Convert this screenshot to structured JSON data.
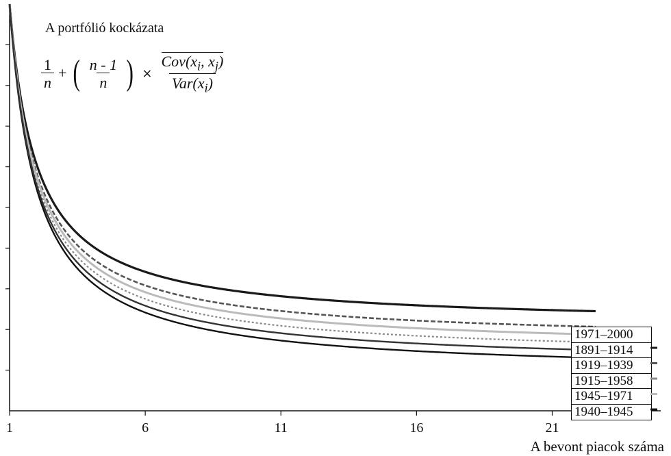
{
  "chart_data": {
    "type": "line",
    "title": "A portfólió kockázata",
    "formula": {
      "term1_num": "1",
      "term1_den": "n",
      "plus": "+",
      "term2_num": "n - 1",
      "term2_den": "n",
      "times": "×",
      "term3_num_bar": "Cov(x",
      "term3_num_sub_i": "i",
      "term3_num_mid": ", x",
      "term3_num_sub_j": "j",
      "term3_num_end": ")",
      "term3_den": "Var(x",
      "term3_den_sub_i": "i",
      "term3_den_end": ")"
    },
    "xlabel": "A bevont piacok száma",
    "ylabel": "",
    "x_ticks": [
      "1",
      "6",
      "11",
      "16",
      "21"
    ],
    "xlim": [
      1,
      25
    ],
    "ylim": [
      0,
      1
    ],
    "grid": false,
    "legend_position": "bottom-right",
    "series": [
      {
        "name": "1971–2000",
        "rho": 0.21,
        "color": "#1a1a1a",
        "width": 3.2,
        "dash": ""
      },
      {
        "name": "1891–1914",
        "rho": 0.17,
        "color": "#555555",
        "width": 2.6,
        "dash": "7 3"
      },
      {
        "name": "1919–1939",
        "rho": 0.13,
        "color": "#8a8a8a",
        "width": 2.2,
        "dash": "3 3"
      },
      {
        "name": "1915–1958",
        "rho": 0.15,
        "color": "#bbbbbb",
        "width": 3.0,
        "dash": ""
      },
      {
        "name": "1945–1971",
        "rho": 0.09,
        "color": "#111111",
        "width": 2.4,
        "dash": ""
      },
      {
        "name": "1940–1945",
        "rho": 0.11,
        "color": "#333333",
        "width": 2.4,
        "dash": ""
      }
    ]
  }
}
